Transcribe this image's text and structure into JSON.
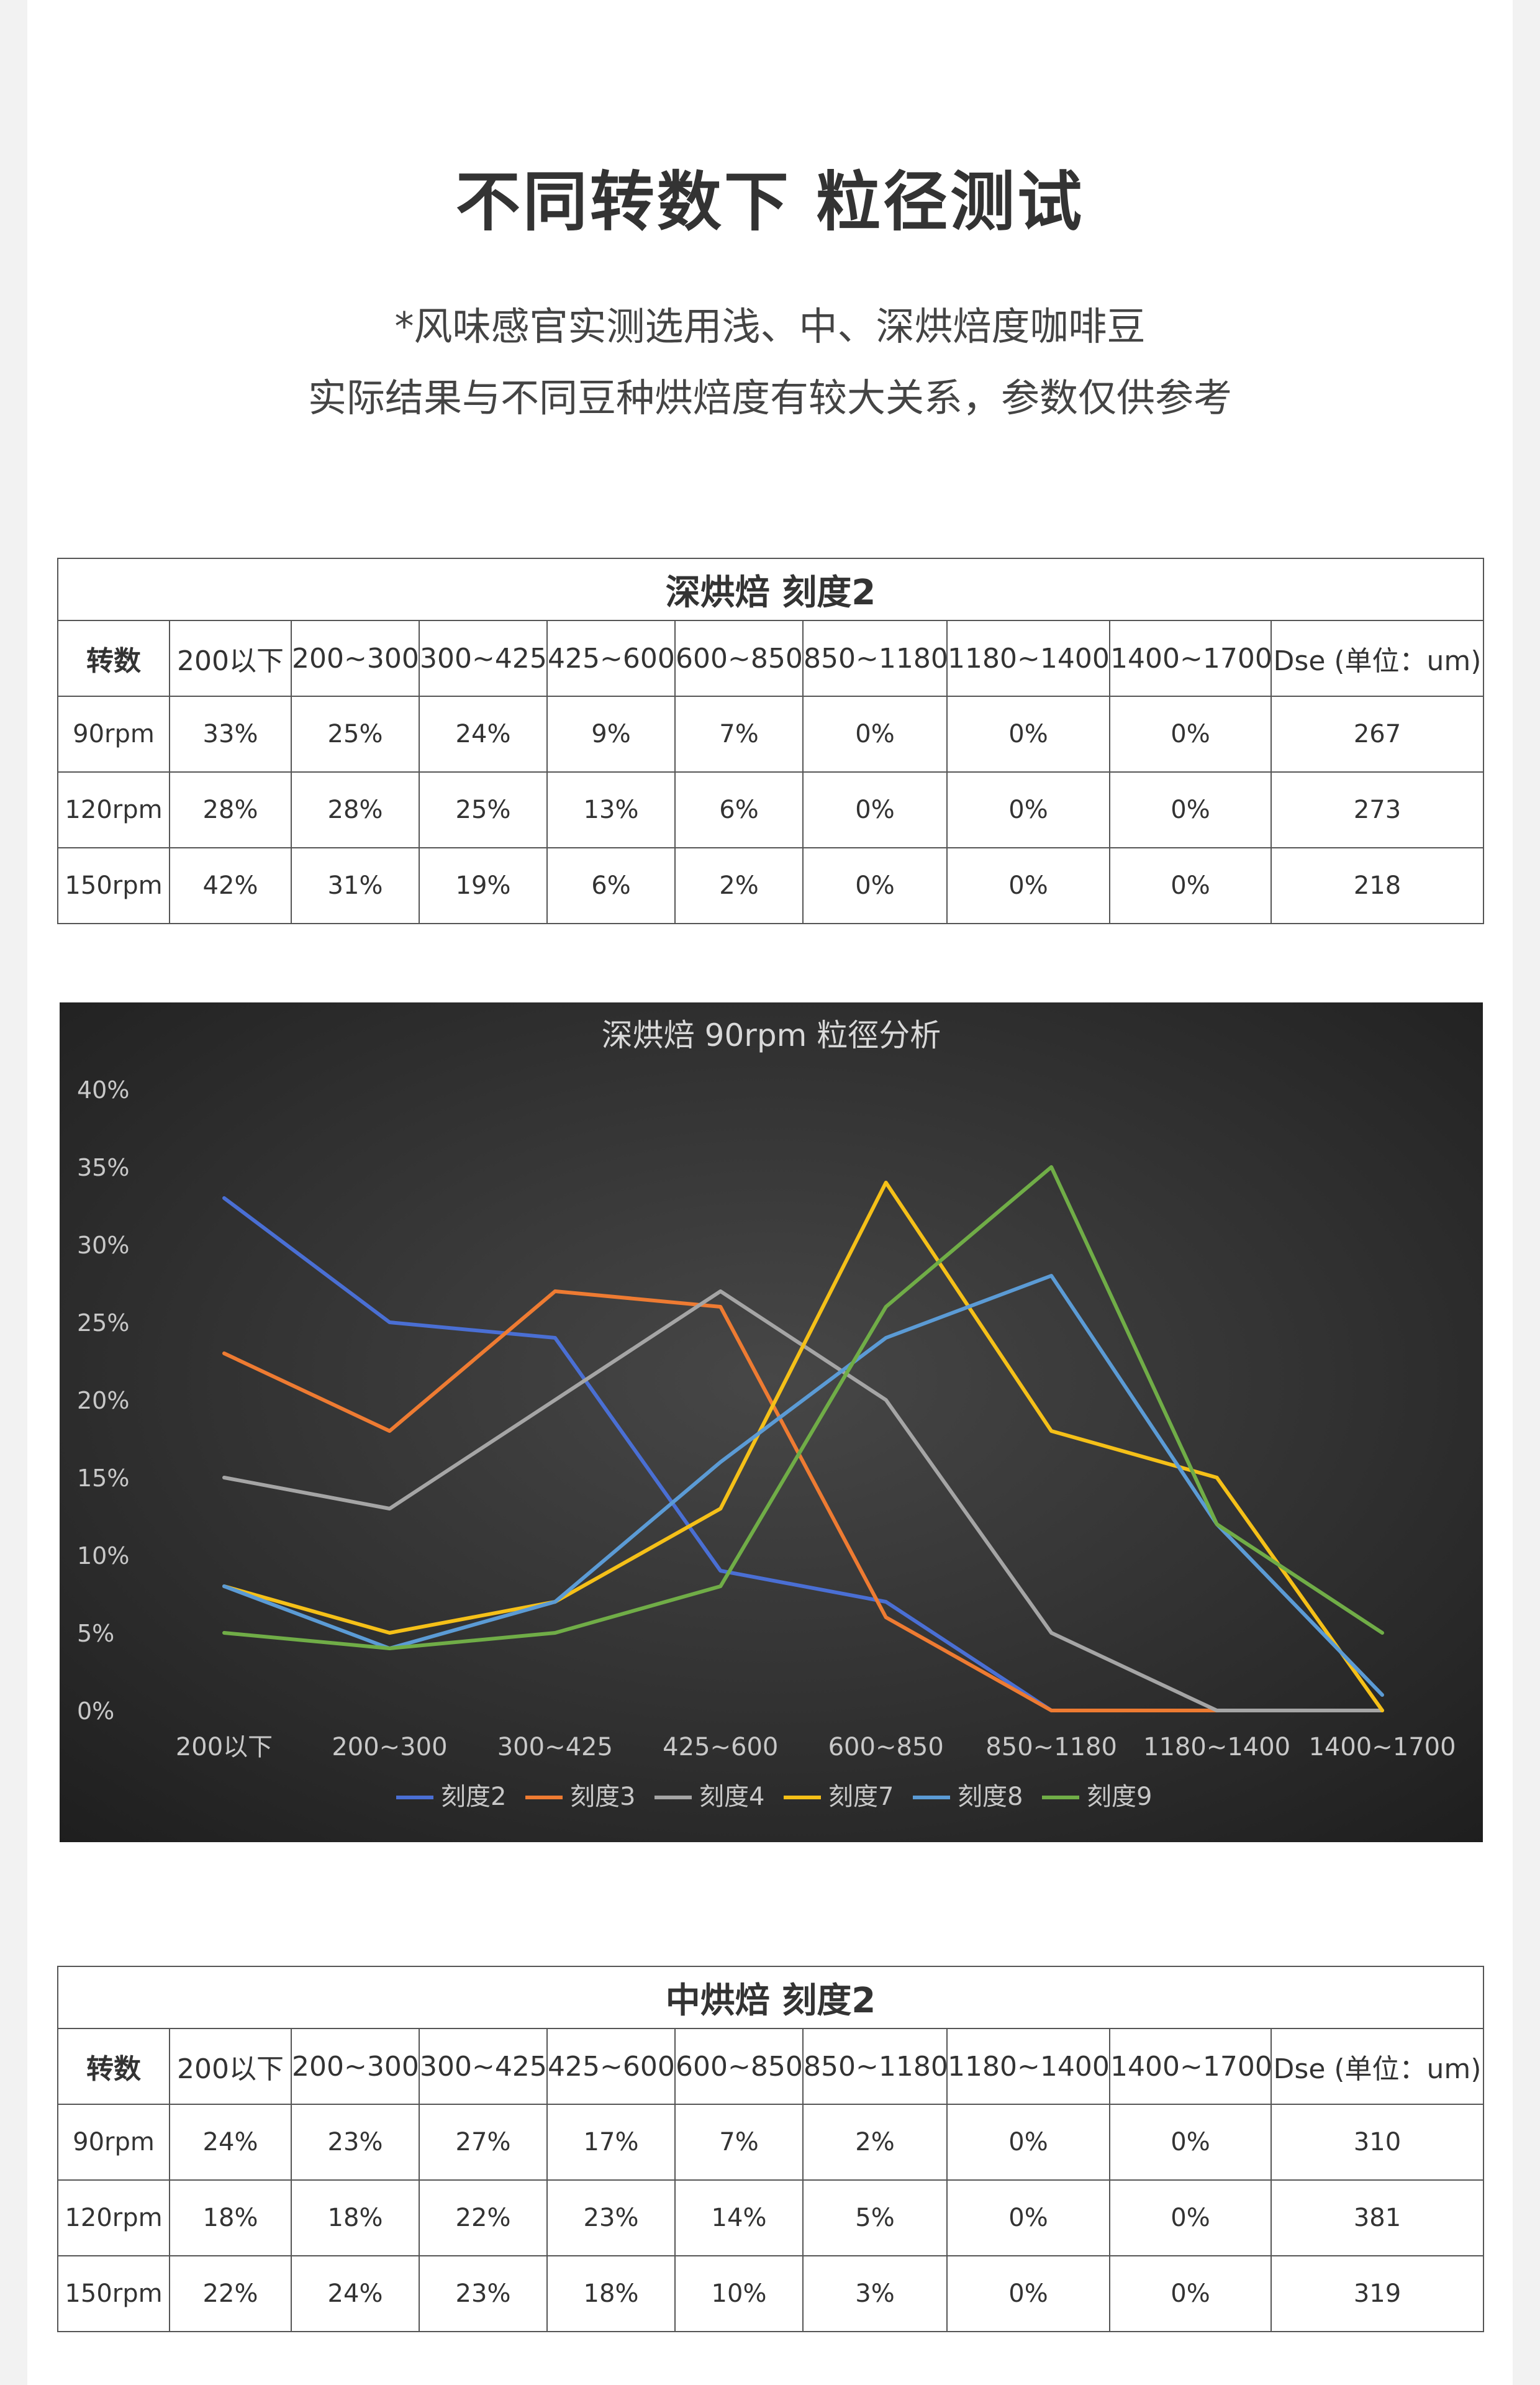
{
  "header": {
    "title": "不同转数下 粒径测试",
    "subtitle_line1": "*风味感官实测选用浅、中、深烘焙度咖啡豆",
    "subtitle_line2": "实际结果与不同豆种烘焙度有较大关系，参数仅供参考"
  },
  "tables": [
    {
      "caption": "深烘焙 刻度2",
      "headers": [
        "转数",
        "200以下",
        "200~300",
        "300~425",
        "425~600",
        "600~850",
        "850~1180",
        "1180~1400",
        "1400~1700",
        "Dse (单位：um)"
      ],
      "rows": [
        [
          "90rpm",
          "33%",
          "25%",
          "24%",
          "9%",
          "7%",
          "0%",
          "0%",
          "0%",
          "267"
        ],
        [
          "120rpm",
          "28%",
          "28%",
          "25%",
          "13%",
          "6%",
          "0%",
          "0%",
          "0%",
          "273"
        ],
        [
          "150rpm",
          "42%",
          "31%",
          "19%",
          "6%",
          "2%",
          "0%",
          "0%",
          "0%",
          "218"
        ]
      ]
    },
    {
      "caption": "中烘焙 刻度2",
      "headers": [
        "转数",
        "200以下",
        "200~300",
        "300~425",
        "425~600",
        "600~850",
        "850~1180",
        "1180~1400",
        "1400~1700",
        "Dse (单位：um)"
      ],
      "rows": [
        [
          "90rpm",
          "24%",
          "23%",
          "27%",
          "17%",
          "7%",
          "2%",
          "0%",
          "0%",
          "310"
        ],
        [
          "120rpm",
          "18%",
          "18%",
          "22%",
          "23%",
          "14%",
          "5%",
          "0%",
          "0%",
          "381"
        ],
        [
          "150rpm",
          "22%",
          "24%",
          "23%",
          "18%",
          "10%",
          "3%",
          "0%",
          "0%",
          "319"
        ]
      ]
    }
  ],
  "chart_data": {
    "type": "line",
    "title": "深烘焙 90rpm 粒徑分析",
    "xlabel": "",
    "ylabel": "",
    "categories": [
      "200以下",
      "200~300",
      "300~425",
      "425~600",
      "600~850",
      "850~1180",
      "1180~1400",
      "1400~1700"
    ],
    "ylim": [
      0,
      40
    ],
    "yticks": [
      "0%",
      "5%",
      "10%",
      "15%",
      "20%",
      "25%",
      "30%",
      "35%",
      "40%"
    ],
    "grid": false,
    "legend": "bottom",
    "background": "#2b2b2b",
    "series": [
      {
        "name": "刻度2",
        "color": "#4a6fd4",
        "values": [
          33,
          25,
          24,
          9,
          7,
          0,
          0,
          null
        ]
      },
      {
        "name": "刻度3",
        "color": "#ee7b32",
        "values": [
          23,
          18,
          27,
          26,
          6,
          0,
          0,
          null
        ]
      },
      {
        "name": "刻度4",
        "color": "#a5a5a5",
        "values": [
          15,
          13,
          20,
          27,
          20,
          5,
          0,
          0
        ]
      },
      {
        "name": "刻度7",
        "color": "#f5c018",
        "values": [
          8,
          5,
          7,
          13,
          34,
          18,
          15,
          0
        ]
      },
      {
        "name": "刻度8",
        "color": "#5b9bd5",
        "values": [
          8,
          4,
          7,
          16,
          24,
          28,
          12,
          1
        ]
      },
      {
        "name": "刻度9",
        "color": "#70ad47",
        "values": [
          5,
          4,
          5,
          8,
          26,
          35,
          12,
          5
        ]
      }
    ]
  }
}
